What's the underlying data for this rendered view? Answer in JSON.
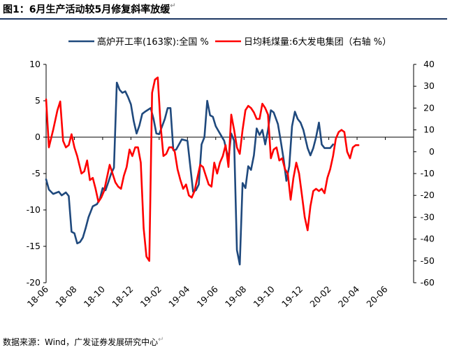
{
  "title": "图1：6月生产活动较5月修复斜率放缓",
  "source": "数据来源：Wind，广发证券发展研究中心",
  "return_mark": "↵",
  "chart_data": {
    "type": "line",
    "x_ticks": [
      "18-06",
      "18-08",
      "18-10",
      "18-12",
      "19-02",
      "19-04",
      "19-06",
      "19-08",
      "19-10",
      "19-12",
      "20-02",
      "20-04",
      "20-06"
    ],
    "x_range": [
      0,
      26
    ],
    "left_axis": {
      "ylim": [
        -20,
        10
      ],
      "ticks": [
        10,
        5,
        0,
        -5,
        -10,
        -15,
        -20
      ]
    },
    "right_axis": {
      "ylim": [
        -60,
        40
      ],
      "ticks": [
        40,
        30,
        20,
        10,
        0,
        -10,
        -20,
        -30,
        -40,
        -50,
        -60
      ],
      "label": "右轴 %"
    },
    "series": [
      {
        "name": "高炉开工率(163家):全国 %",
        "axis": "left",
        "color": "#1f497d",
        "points": [
          [
            0,
            -5.8
          ],
          [
            0.2,
            -7.2
          ],
          [
            0.5,
            -7.8
          ],
          [
            0.9,
            -7.5
          ],
          [
            1.1,
            -8.0
          ],
          [
            1.4,
            -7.6
          ],
          [
            1.6,
            -8.1
          ],
          [
            1.8,
            -13.0
          ],
          [
            2.0,
            -13.2
          ],
          [
            2.2,
            -14.6
          ],
          [
            2.4,
            -14.4
          ],
          [
            2.6,
            -13.8
          ],
          [
            2.8,
            -12.5
          ],
          [
            3.0,
            -11.0
          ],
          [
            3.3,
            -9.5
          ],
          [
            3.6,
            -9.2
          ],
          [
            3.8,
            -8.5
          ],
          [
            4.0,
            -7.0
          ],
          [
            4.2,
            -7.3
          ],
          [
            4.4,
            -6.2
          ],
          [
            4.6,
            -5.0
          ],
          [
            4.8,
            -4.2
          ],
          [
            5.0,
            7.5
          ],
          [
            5.2,
            6.5
          ],
          [
            5.4,
            6.1
          ],
          [
            5.6,
            6.3
          ],
          [
            5.8,
            5.5
          ],
          [
            6.0,
            4.5
          ],
          [
            6.2,
            2.2
          ],
          [
            6.4,
            0.5
          ],
          [
            6.6,
            1.6
          ],
          [
            6.8,
            3.2
          ],
          [
            7.0,
            3.5
          ],
          [
            7.4,
            4.0
          ],
          [
            7.6,
            2.5
          ],
          [
            7.8,
            0.5
          ],
          [
            8.0,
            0.4
          ],
          [
            8.4,
            2.5
          ],
          [
            8.6,
            4.0
          ],
          [
            8.8,
            4.0
          ],
          [
            9.0,
            -1.8
          ],
          [
            9.2,
            -1.7
          ],
          [
            9.4,
            -1.0
          ],
          [
            9.6,
            -0.3
          ],
          [
            10.0,
            -0.5
          ],
          [
            10.4,
            -7.5
          ],
          [
            10.6,
            -7.3
          ],
          [
            10.8,
            -6.5
          ],
          [
            11.0,
            -1.0
          ],
          [
            11.2,
            0.0
          ],
          [
            11.4,
            5.0
          ],
          [
            11.6,
            3.0
          ],
          [
            11.8,
            2.8
          ],
          [
            12.0,
            1.5
          ],
          [
            12.3,
            0.5
          ],
          [
            12.6,
            -0.5
          ],
          [
            12.9,
            -3.0
          ],
          [
            13.1,
            0.5
          ],
          [
            13.3,
            -0.5
          ],
          [
            13.5,
            -15.5
          ],
          [
            13.7,
            -17.5
          ],
          [
            13.9,
            -6.3
          ],
          [
            14.1,
            -7.0
          ],
          [
            14.3,
            -4.0
          ],
          [
            14.5,
            -4.5
          ],
          [
            14.7,
            -2.5
          ],
          [
            14.9,
            1.2
          ],
          [
            15.1,
            0.3
          ],
          [
            15.3,
            1.0
          ],
          [
            15.5,
            -1.0
          ],
          [
            15.7,
            1.0
          ],
          [
            15.9,
            3.7
          ],
          [
            16.1,
            3.4
          ],
          [
            16.4,
            1.8
          ],
          [
            16.6,
            -0.5
          ],
          [
            16.8,
            -3.0
          ],
          [
            17.0,
            -6.0
          ],
          [
            17.2,
            -4.0
          ],
          [
            17.4,
            1.5
          ],
          [
            17.6,
            3.5
          ],
          [
            17.8,
            2.5
          ],
          [
            18.0,
            2.0
          ],
          [
            18.2,
            1.0
          ],
          [
            18.5,
            -1.5
          ],
          [
            18.7,
            -2.5
          ],
          [
            18.9,
            -1.5
          ],
          [
            19.1,
            0.0
          ],
          [
            19.3,
            2.0
          ],
          [
            19.5,
            -1.0
          ],
          [
            19.7,
            -1.5
          ],
          [
            20.1,
            -1.5
          ],
          [
            20.3,
            -1.0
          ]
        ]
      },
      {
        "name": "日均耗煤量:6大发电集团（右轴 %）",
        "axis": "right",
        "color": "#ff0000",
        "points": [
          [
            0,
            24
          ],
          [
            0.2,
            2
          ],
          [
            0.5,
            10
          ],
          [
            0.8,
            19
          ],
          [
            1.0,
            23
          ],
          [
            1.2,
            5
          ],
          [
            1.4,
            2
          ],
          [
            1.6,
            3
          ],
          [
            1.8,
            8
          ],
          [
            2.0,
            2
          ],
          [
            2.2,
            -2
          ],
          [
            2.5,
            -10
          ],
          [
            2.7,
            -9
          ],
          [
            2.9,
            -4
          ],
          [
            3.1,
            -13
          ],
          [
            3.3,
            -12
          ],
          [
            3.5,
            -17
          ],
          [
            3.7,
            -23
          ],
          [
            3.9,
            -21
          ],
          [
            4.1,
            -18
          ],
          [
            4.3,
            -12
          ],
          [
            4.5,
            -6
          ],
          [
            4.7,
            -10
          ],
          [
            4.9,
            -14
          ],
          [
            5.1,
            -16
          ],
          [
            5.3,
            -17
          ],
          [
            5.5,
            -11
          ],
          [
            5.7,
            -7
          ],
          [
            5.9,
            1
          ],
          [
            6.1,
            -2
          ],
          [
            6.3,
            2
          ],
          [
            6.5,
            2
          ],
          [
            6.7,
            -5
          ],
          [
            6.9,
            -35
          ],
          [
            7.1,
            -48
          ],
          [
            7.3,
            -50
          ],
          [
            7.5,
            27
          ],
          [
            7.7,
            33
          ],
          [
            7.9,
            34
          ],
          [
            8.1,
            12
          ],
          [
            8.3,
            -2
          ],
          [
            8.5,
            -1
          ],
          [
            8.7,
            2
          ],
          [
            8.9,
            2
          ],
          [
            9.1,
            0
          ],
          [
            9.3,
            -8
          ],
          [
            9.5,
            -13
          ],
          [
            9.7,
            -17
          ],
          [
            9.9,
            -15
          ],
          [
            10.1,
            -20
          ],
          [
            10.3,
            -21
          ],
          [
            10.5,
            -18
          ],
          [
            10.7,
            -12
          ],
          [
            10.9,
            -6
          ],
          [
            11.1,
            -7
          ],
          [
            11.3,
            -11
          ],
          [
            11.5,
            -15
          ],
          [
            11.7,
            -16
          ],
          [
            11.9,
            -5
          ],
          [
            12.1,
            -10
          ],
          [
            12.3,
            -5
          ],
          [
            12.5,
            -2
          ],
          [
            12.7,
            3
          ],
          [
            12.9,
            -7
          ],
          [
            13.1,
            17
          ],
          [
            13.3,
            10
          ],
          [
            13.5,
            2
          ],
          [
            13.7,
            -1
          ],
          [
            13.9,
            10
          ],
          [
            14.1,
            19
          ],
          [
            14.3,
            21
          ],
          [
            14.5,
            20
          ],
          [
            14.7,
            18
          ],
          [
            14.9,
            15
          ],
          [
            15.1,
            15
          ],
          [
            15.3,
            22
          ],
          [
            15.5,
            20
          ],
          [
            15.7,
            17
          ],
          [
            15.9,
            -3
          ],
          [
            16.1,
            1
          ],
          [
            16.3,
            2
          ],
          [
            16.5,
            -4
          ],
          [
            16.7,
            -3
          ],
          [
            16.9,
            -8
          ],
          [
            17.1,
            -10
          ],
          [
            17.3,
            -22
          ],
          [
            17.5,
            -12
          ],
          [
            17.7,
            -5
          ],
          [
            17.9,
            -10
          ],
          [
            18.1,
            -20
          ],
          [
            18.3,
            -30
          ],
          [
            18.5,
            -36
          ],
          [
            18.7,
            -25
          ],
          [
            18.9,
            -18
          ],
          [
            19.1,
            -17
          ],
          [
            19.3,
            -18
          ],
          [
            19.5,
            -17
          ],
          [
            19.7,
            -19
          ],
          [
            19.9,
            -12
          ],
          [
            20.1,
            -8
          ],
          [
            20.3,
            -2
          ],
          [
            20.5,
            6
          ],
          [
            20.7,
            9
          ],
          [
            20.9,
            10
          ],
          [
            21.1,
            9
          ],
          [
            21.3,
            0
          ],
          [
            21.5,
            -3
          ],
          [
            21.7,
            2
          ],
          [
            21.9,
            3
          ],
          [
            22.1,
            3
          ]
        ]
      }
    ]
  }
}
